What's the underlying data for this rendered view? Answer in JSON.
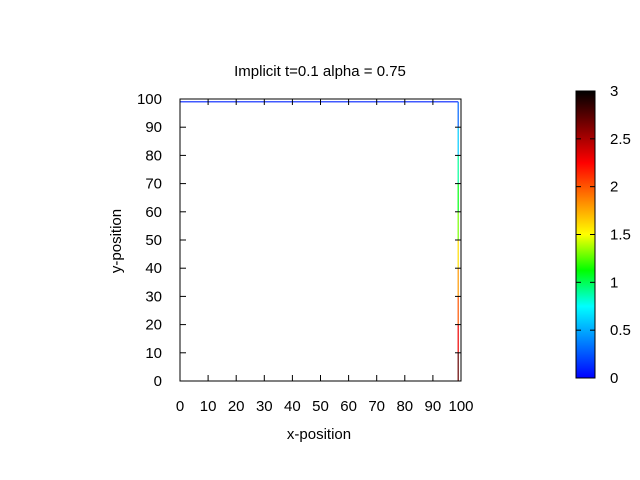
{
  "chart_data": {
    "type": "heatmap",
    "title": "Implicit t=0.1 alpha = 0.75",
    "xlabel": "x-position",
    "ylabel": "y-position",
    "xlim": [
      0,
      100
    ],
    "ylim": [
      0,
      100
    ],
    "xticks": [
      0,
      10,
      20,
      30,
      40,
      50,
      60,
      70,
      80,
      90,
      100
    ],
    "yticks": [
      0,
      10,
      20,
      30,
      40,
      50,
      60,
      70,
      80,
      90,
      100
    ],
    "grid": false,
    "colorbar": {
      "range": [
        0,
        3
      ],
      "ticks": [
        0,
        0.5,
        1,
        1.5,
        2,
        2.5,
        3
      ],
      "colormap": [
        "#0000ff",
        "#0080ff",
        "#00ffff",
        "#00ff00",
        "#ffff00",
        "#ff8000",
        "#ff0000",
        "#800000",
        "#000000"
      ]
    },
    "contours": [
      {
        "description": "boundary values along the top edge (y≈99) and right edge (x≈99), color mapped to value",
        "segments": [
          {
            "x": [
              0,
              99
            ],
            "y": [
              99,
              99
            ],
            "value": 0.1
          },
          {
            "x": [
              99,
              99
            ],
            "y": [
              99,
              90
            ],
            "value": 0.3
          },
          {
            "x": [
              99,
              99
            ],
            "y": [
              90,
              80
            ],
            "value": 0.6
          },
          {
            "x": [
              99,
              99
            ],
            "y": [
              80,
              70
            ],
            "value": 0.9
          },
          {
            "x": [
              99,
              99
            ],
            "y": [
              70,
              60
            ],
            "value": 1.1
          },
          {
            "x": [
              99,
              99
            ],
            "y": [
              60,
              50
            ],
            "value": 1.3
          },
          {
            "x": [
              99,
              99
            ],
            "y": [
              50,
              40
            ],
            "value": 1.6
          },
          {
            "x": [
              99,
              99
            ],
            "y": [
              40,
              30
            ],
            "value": 1.8
          },
          {
            "x": [
              99,
              99
            ],
            "y": [
              30,
              20
            ],
            "value": 2.0
          },
          {
            "x": [
              99,
              99
            ],
            "y": [
              20,
              10
            ],
            "value": 2.3
          },
          {
            "x": [
              99,
              99
            ],
            "y": [
              10,
              0
            ],
            "value": 2.7
          }
        ]
      }
    ]
  }
}
